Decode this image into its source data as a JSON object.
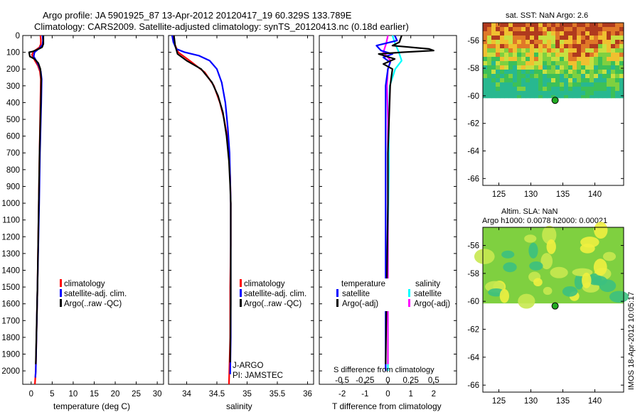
{
  "header": {
    "line1": "Argo profile: JA 5901925_87 13-Apr-2012 20120417_19 60.329S 133.789E",
    "line2": "Climatology: CARS2009. Satellite-adjusted climatology: synTS_20120413.nc (0.18d earlier)"
  },
  "colors": {
    "climatology": "#ff0000",
    "satellite": "#0000ff",
    "argo": "#000000",
    "sal_satellite": "#00ffff",
    "sal_argo": "#ff00ff",
    "marker": "#22aa22"
  },
  "depth_axis": {
    "ylim": [
      0,
      2080
    ],
    "ticks": [
      "0",
      "100",
      "200",
      "300",
      "400",
      "500",
      "600",
      "700",
      "800",
      "900",
      "1000",
      "1100",
      "1200",
      "1300",
      "1400",
      "1500",
      "1600",
      "1700",
      "1800",
      "1900",
      "2000"
    ]
  },
  "panels": {
    "temperature": {
      "xlabel": "temperature (deg C)",
      "xlim": [
        -2,
        31.5
      ],
      "xticks": [
        "0",
        "5",
        "10",
        "15",
        "20",
        "25",
        "30"
      ],
      "legend": [
        "climatology",
        "satellite-adj. clim.",
        "Argo(..raw -QC)"
      ]
    },
    "salinity": {
      "xlabel": "salinity",
      "xlim": [
        33.7,
        36.1
      ],
      "xticks": [
        "34",
        "34.5",
        "35",
        "35.5",
        "36"
      ],
      "legend": [
        "climatology",
        "satellite-adj. clim.",
        "Argo(..raw -QC)"
      ],
      "note1": "J-ARGO",
      "note2": "PI: JAMSTEC"
    },
    "difference": {
      "xlabel": "T difference from climatology",
      "xlim": [
        -3,
        3
      ],
      "xticks": [
        "-2",
        "-1",
        "0",
        "1",
        "2"
      ],
      "top_label": "S difference from climatology",
      "top_ticks": [
        "-0.5",
        "-0.25",
        "0",
        "0.25",
        "0.5"
      ],
      "legend_temp_title": "temperature",
      "legend_sal_title": "salinity",
      "legend_temp": [
        "satellite",
        "Argo(-adj)"
      ],
      "legend_sal": [
        "satellite",
        "Argo(-adj)"
      ]
    }
  },
  "maps": {
    "sst": {
      "title": "sat. SST: NaN Argo: 2.6",
      "yticks": [
        "-56",
        "-58",
        "-60",
        "-62",
        "-64",
        "-66"
      ],
      "xticks": [
        "125",
        "130",
        "135",
        "140"
      ]
    },
    "sla": {
      "title1": "Altim. SLA: NaN",
      "title2": "Argo h1000: 0.0078 h2000: 0.00021",
      "yticks": [
        "-56",
        "-58",
        "-60",
        "-62",
        "-64",
        "-66"
      ],
      "xticks": [
        "125",
        "130",
        "135",
        "140"
      ]
    },
    "argo_position": {
      "lon": 133.789,
      "lat": -60.329
    }
  },
  "side_label": "IMOS 18-Apr-2012 10:05:17",
  "chart_data": [
    {
      "type": "line",
      "title": "",
      "xlabel": "temperature (deg C)",
      "ylabel": "",
      "xlim": [
        -2,
        31.5
      ],
      "ylim": [
        0,
        2080
      ],
      "series": [
        {
          "name": "climatology",
          "color": "#ff0000",
          "points": [
            [
              2.2,
              0
            ],
            [
              2.3,
              25
            ],
            [
              2.3,
              50
            ],
            [
              2.0,
              70
            ],
            [
              0.6,
              95
            ],
            [
              0.2,
              115
            ],
            [
              0.9,
              150
            ],
            [
              1.6,
              180
            ],
            [
              2.1,
              215
            ],
            [
              2.3,
              260
            ],
            [
              2.2,
              400
            ],
            [
              2.0,
              700
            ],
            [
              1.8,
              1000
            ],
            [
              1.5,
              1500
            ],
            [
              1.1,
              2000
            ],
            [
              0.9,
              2080
            ]
          ]
        },
        {
          "name": "satellite-adj. clim.",
          "color": "#0000ff",
          "points": [
            [
              2.7,
              0
            ],
            [
              2.8,
              30
            ],
            [
              2.7,
              55
            ],
            [
              2.0,
              75
            ],
            [
              0.8,
              100
            ],
            [
              0.6,
              125
            ],
            [
              1.2,
              150
            ],
            [
              1.8,
              180
            ],
            [
              2.3,
              215
            ],
            [
              2.5,
              260
            ],
            [
              2.4,
              400
            ],
            [
              2.1,
              700
            ],
            [
              1.9,
              1000
            ],
            [
              1.5,
              1500
            ],
            [
              1.1,
              2000
            ],
            [
              1.0,
              2040
            ]
          ]
        },
        {
          "name": "Argo(..raw -QC)",
          "color": "#000000",
          "points": [
            [
              2.9,
              0
            ],
            [
              2.9,
              50
            ],
            [
              2.6,
              70
            ],
            [
              1.8,
              80
            ],
            [
              0.4,
              95
            ],
            [
              -0.5,
              100
            ],
            [
              -0.3,
              125
            ],
            [
              0.8,
              140
            ],
            [
              1.7,
              165
            ],
            [
              2.2,
              200
            ],
            [
              2.4,
              260
            ],
            [
              2.3,
              400
            ],
            [
              2.0,
              700
            ],
            [
              1.8,
              1000
            ],
            [
              1.5,
              1500
            ],
            [
              1.1,
              1960
            ]
          ]
        }
      ]
    },
    {
      "type": "line",
      "title": "",
      "xlabel": "salinity",
      "ylabel": "",
      "xlim": [
        33.7,
        36.1
      ],
      "ylim": [
        0,
        2080
      ],
      "series": [
        {
          "name": "climatology",
          "color": "#ff0000",
          "points": [
            [
              33.78,
              0
            ],
            [
              33.8,
              50
            ],
            [
              33.86,
              100
            ],
            [
              34.05,
              150
            ],
            [
              34.3,
              220
            ],
            [
              34.45,
              300
            ],
            [
              34.55,
              400
            ],
            [
              34.62,
              500
            ],
            [
              34.67,
              600
            ],
            [
              34.7,
              700
            ],
            [
              34.72,
              850
            ],
            [
              34.73,
              1000
            ],
            [
              34.73,
              1250
            ],
            [
              34.72,
              1500
            ],
            [
              34.72,
              1800
            ],
            [
              34.7,
              2080
            ]
          ]
        },
        {
          "name": "satellite-adj. clim.",
          "color": "#0000ff",
          "points": [
            [
              33.76,
              0
            ],
            [
              33.78,
              40
            ],
            [
              33.83,
              80
            ],
            [
              33.97,
              100
            ],
            [
              34.2,
              120
            ],
            [
              34.38,
              150
            ],
            [
              34.5,
              200
            ],
            [
              34.58,
              280
            ],
            [
              34.64,
              400
            ],
            [
              34.68,
              550
            ],
            [
              34.71,
              700
            ],
            [
              34.73,
              1000
            ],
            [
              34.73,
              1400
            ],
            [
              34.73,
              1800
            ],
            [
              34.72,
              2020
            ]
          ]
        },
        {
          "name": "Argo(..raw -QC)",
          "color": "#000000",
          "points": [
            [
              33.79,
              0
            ],
            [
              33.81,
              60
            ],
            [
              33.85,
              110
            ],
            [
              34.0,
              150
            ],
            [
              34.24,
              200
            ],
            [
              34.42,
              280
            ],
            [
              34.52,
              360
            ],
            [
              34.6,
              460
            ],
            [
              34.66,
              600
            ],
            [
              34.7,
              750
            ],
            [
              34.72,
              900
            ],
            [
              34.73,
              1000
            ],
            [
              34.73,
              1300
            ],
            [
              34.73,
              1600
            ],
            [
              34.72,
              1950
            ]
          ]
        }
      ]
    },
    {
      "type": "line",
      "title": "",
      "xlabel": "T difference from climatology",
      "ylabel": "",
      "xlim": [
        -3,
        3
      ],
      "ylim": [
        0,
        2080
      ],
      "series": [
        {
          "name": "satellite",
          "color": "#0000ff",
          "points": [
            [
              0.3,
              0
            ],
            [
              0.4,
              30
            ],
            [
              -0.5,
              60
            ],
            [
              -0.3,
              90
            ],
            [
              0.2,
              110
            ],
            [
              -0.2,
              130
            ],
            [
              0.1,
              160
            ],
            [
              0.0,
              200
            ],
            [
              -0.1,
              300
            ],
            [
              -0.1,
              500
            ],
            [
              -0.1,
              800
            ],
            [
              -0.1,
              1000
            ],
            [
              -0.1,
              1500
            ],
            [
              -0.1,
              2000
            ]
          ]
        },
        {
          "name": "Argo(-adj)",
          "color": "#000000",
          "points": [
            [
              0.6,
              0
            ],
            [
              0.5,
              40
            ],
            [
              0.2,
              60
            ],
            [
              1.8,
              80
            ],
            [
              2.0,
              90
            ],
            [
              0.6,
              100
            ],
            [
              -0.4,
              110
            ],
            [
              0.3,
              140
            ],
            [
              -0.2,
              170
            ],
            [
              0.2,
              200
            ],
            [
              0.1,
              300
            ],
            [
              0.05,
              500
            ],
            [
              0.0,
              700
            ],
            [
              0.0,
              1000
            ],
            [
              -0.05,
              1500
            ],
            [
              -0.1,
              1960
            ]
          ]
        }
      ]
    },
    {
      "type": "line",
      "title": "",
      "xlabel": "S difference from climatology",
      "ylabel": "",
      "xlim": [
        -0.75,
        0.75
      ],
      "ylim": [
        0,
        2080
      ],
      "series": [
        {
          "name": "satellite",
          "color": "#00ffff",
          "points": [
            [
              0.05,
              0
            ],
            [
              0.08,
              50
            ],
            [
              0.12,
              100
            ],
            [
              0.15,
              150
            ],
            [
              0.08,
              200
            ],
            [
              0.02,
              300
            ],
            [
              0.01,
              500
            ],
            [
              0.01,
              800
            ],
            [
              0.0,
              1200
            ],
            [
              0.0,
              1600
            ],
            [
              0.0,
              2000
            ]
          ]
        },
        {
          "name": "Argo(-adj)",
          "color": "#ff00ff",
          "points": [
            [
              0.0,
              0
            ],
            [
              -0.02,
              50
            ],
            [
              -0.05,
              100
            ],
            [
              0.03,
              150
            ],
            [
              0.0,
              200
            ],
            [
              -0.01,
              300
            ],
            [
              0.0,
              500
            ],
            [
              0.0,
              800
            ],
            [
              0.0,
              1200
            ],
            [
              0.0,
              1600
            ],
            [
              0.0,
              1960
            ]
          ]
        }
      ]
    }
  ]
}
